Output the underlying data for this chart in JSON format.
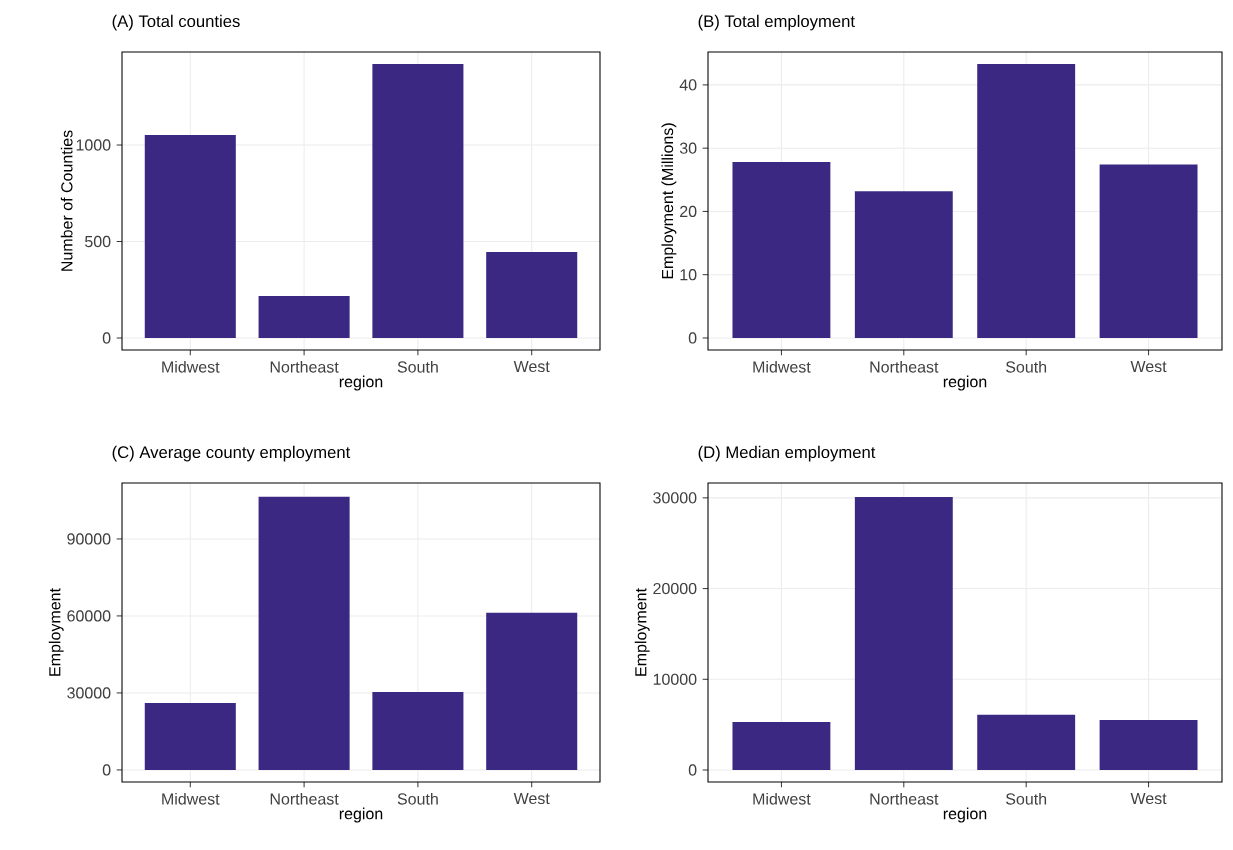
{
  "chart_data": [
    {
      "type": "bar",
      "title": "(A) Total counties",
      "xlabel": "region",
      "ylabel": "Number of Counties",
      "categories": [
        "Midwest",
        "Northeast",
        "South",
        "West"
      ],
      "values": [
        1052,
        218,
        1420,
        446
      ],
      "color": "#3b2883",
      "ylim": [
        -62,
        1482
      ],
      "yticks": [
        0,
        500,
        1000
      ],
      "grid": true
    },
    {
      "type": "bar",
      "title": "(B) Total employment",
      "xlabel": "region",
      "ylabel": "Employment (Millions)",
      "categories": [
        "Midwest",
        "Northeast",
        "South",
        "West"
      ],
      "values": [
        27.8,
        23.2,
        43.3,
        27.4
      ],
      "color": "#3b2883",
      "ylim": [
        -1.9,
        45.2
      ],
      "yticks": [
        0,
        10,
        20,
        30,
        40
      ],
      "grid": true
    },
    {
      "type": "bar",
      "title": "(C) Average county employment",
      "xlabel": "region",
      "ylabel": "Employment",
      "categories": [
        "Midwest",
        "Northeast",
        "South",
        "West"
      ],
      "values": [
        26100,
        106400,
        30400,
        61200
      ],
      "color": "#3b2883",
      "ylim": [
        -4700,
        111800
      ],
      "yticks": [
        0,
        30000,
        60000,
        90000
      ],
      "grid": true
    },
    {
      "type": "bar",
      "title": "(D) Median employment",
      "xlabel": "region",
      "ylabel": "Employment",
      "categories": [
        "Midwest",
        "Northeast",
        "South",
        "West"
      ],
      "values": [
        5300,
        30100,
        6100,
        5500
      ],
      "color": "#3b2883",
      "ylim": [
        -1320,
        31640
      ],
      "yticks": [
        0,
        10000,
        20000,
        30000
      ],
      "grid": true
    }
  ]
}
